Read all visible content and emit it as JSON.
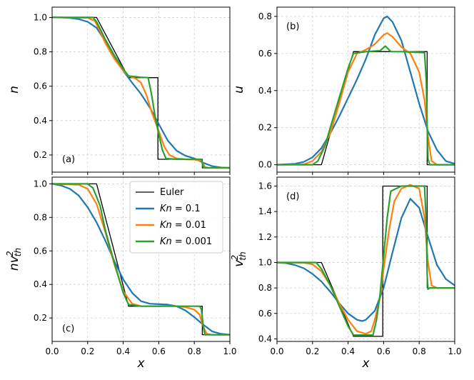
{
  "chart_data": {
    "type": "line",
    "legend": {
      "placement": "upper-right of panel (c)",
      "entries": [
        {
          "label": "Euler",
          "color": "#000000"
        },
        {
          "label": "Kn = 0.1",
          "color": "#1f77b4"
        },
        {
          "label": "Kn = 0.01",
          "color": "#ff7f0e"
        },
        {
          "label": "Kn = 0.001",
          "color": "#2ca02c"
        }
      ]
    },
    "panels": [
      {
        "id": "a",
        "label": "(a)",
        "ylabel": "n",
        "xlabel": "",
        "xlim": [
          0,
          1
        ],
        "ylim": [
          0.1,
          1.06
        ],
        "xticks": [],
        "yticks": [
          "1.0",
          "0.8",
          "0.6",
          "0.4",
          "0.2"
        ],
        "ytick_values": [
          1.0,
          0.8,
          0.6,
          0.4,
          0.2
        ],
        "series": [
          {
            "name": "Euler",
            "color": "#000000",
            "width": 1.3,
            "x": [
              0,
              0.25,
              0.43,
              0.595,
              0.595,
              0.845,
              0.845,
              1.0
            ],
            "y": [
              1.0,
              1.0,
              0.65,
              0.65,
              0.175,
              0.175,
              0.125,
              0.125
            ]
          },
          {
            "name": "Kn = 0.1",
            "color": "#1f77b4",
            "width": 2.2,
            "x": [
              0,
              0.05,
              0.1,
              0.15,
              0.2,
              0.25,
              0.3,
              0.35,
              0.4,
              0.45,
              0.5,
              0.55,
              0.6,
              0.65,
              0.7,
              0.75,
              0.8,
              0.85,
              0.9,
              0.95,
              1.0
            ],
            "y": [
              1.0,
              1.0,
              0.997,
              0.99,
              0.975,
              0.94,
              0.86,
              0.77,
              0.69,
              0.62,
              0.555,
              0.475,
              0.38,
              0.285,
              0.225,
              0.195,
              0.18,
              0.155,
              0.135,
              0.127,
              0.125
            ]
          },
          {
            "name": "Kn = 0.01",
            "color": "#ff7f0e",
            "width": 2.2,
            "x": [
              0,
              0.2,
              0.24,
              0.27,
              0.3,
              0.35,
              0.4,
              0.43,
              0.47,
              0.5,
              0.53,
              0.56,
              0.6,
              0.63,
              0.66,
              0.7,
              0.75,
              0.8,
              0.84,
              0.86,
              0.88,
              0.92,
              1.0
            ],
            "y": [
              1.0,
              0.998,
              0.98,
              0.92,
              0.85,
              0.76,
              0.69,
              0.66,
              0.645,
              0.62,
              0.55,
              0.45,
              0.34,
              0.25,
              0.2,
              0.18,
              0.175,
              0.173,
              0.165,
              0.13,
              0.125,
              0.125,
              0.125
            ]
          },
          {
            "name": "Kn = 0.001",
            "color": "#2ca02c",
            "width": 2.2,
            "x": [
              0,
              0.23,
              0.25,
              0.27,
              0.3,
              0.35,
              0.4,
              0.43,
              0.5,
              0.54,
              0.56,
              0.58,
              0.6,
              0.62,
              0.64,
              0.7,
              0.84,
              0.85,
              0.86,
              1.0
            ],
            "y": [
              1.0,
              1.0,
              0.975,
              0.935,
              0.87,
              0.78,
              0.7,
              0.66,
              0.652,
              0.65,
              0.55,
              0.42,
              0.32,
              0.23,
              0.18,
              0.175,
              0.175,
              0.13,
              0.125,
              0.125
            ]
          }
        ]
      },
      {
        "id": "b",
        "label": "(b)",
        "ylabel": "u",
        "xlabel": "",
        "xlim": [
          0,
          1
        ],
        "ylim": [
          -0.04,
          0.85
        ],
        "xticks": [],
        "yticks": [
          "0.8",
          "0.6",
          "0.4",
          "0.2",
          "0.0"
        ],
        "ytick_values": [
          0.8,
          0.6,
          0.4,
          0.2,
          0.0
        ],
        "series": [
          {
            "name": "Euler",
            "color": "#000000",
            "width": 1.3,
            "x": [
              0,
              0.25,
              0.43,
              0.845,
              0.845,
              1.0
            ],
            "y": [
              0.0,
              0.0,
              0.61,
              0.61,
              0.0,
              0.0
            ]
          },
          {
            "name": "Kn = 0.1",
            "color": "#1f77b4",
            "width": 2.2,
            "x": [
              0,
              0.1,
              0.15,
              0.2,
              0.25,
              0.3,
              0.35,
              0.4,
              0.45,
              0.5,
              0.55,
              0.6,
              0.62,
              0.65,
              0.7,
              0.75,
              0.8,
              0.85,
              0.9,
              0.95,
              1.0
            ],
            "y": [
              0.0,
              0.005,
              0.015,
              0.04,
              0.09,
              0.17,
              0.26,
              0.36,
              0.46,
              0.57,
              0.7,
              0.79,
              0.8,
              0.77,
              0.67,
              0.5,
              0.33,
              0.18,
              0.08,
              0.02,
              0.005
            ]
          },
          {
            "name": "Kn = 0.01",
            "color": "#ff7f0e",
            "width": 2.2,
            "x": [
              0,
              0.15,
              0.2,
              0.25,
              0.3,
              0.35,
              0.4,
              0.45,
              0.5,
              0.55,
              0.6,
              0.62,
              0.65,
              0.7,
              0.75,
              0.8,
              0.83,
              0.85,
              0.87,
              0.9,
              1.0
            ],
            "y": [
              0.0,
              0.002,
              0.02,
              0.07,
              0.17,
              0.33,
              0.5,
              0.6,
              0.62,
              0.65,
              0.7,
              0.71,
              0.69,
              0.635,
              0.6,
              0.5,
              0.35,
              0.15,
              0.02,
              0.0,
              0.0
            ]
          },
          {
            "name": "Kn = 0.001",
            "color": "#2ca02c",
            "width": 2.2,
            "x": [
              0,
              0.2,
              0.23,
              0.27,
              0.3,
              0.35,
              0.4,
              0.43,
              0.5,
              0.58,
              0.61,
              0.64,
              0.7,
              0.83,
              0.84,
              0.845,
              0.85,
              0.86,
              1.0
            ],
            "y": [
              0.0,
              0.0,
              0.02,
              0.1,
              0.2,
              0.36,
              0.52,
              0.6,
              0.61,
              0.615,
              0.64,
              0.61,
              0.61,
              0.605,
              0.45,
              0.2,
              0.03,
              0.0,
              0.0
            ]
          }
        ]
      },
      {
        "id": "c",
        "label": "(c)",
        "ylabel": "nv_th^2",
        "xlabel": "x",
        "xlim": [
          0,
          1
        ],
        "ylim": [
          0.06,
          1.04
        ],
        "xticks": [
          "0.0",
          "0.2",
          "0.4",
          "0.6",
          "0.8",
          "1.0"
        ],
        "xtick_values": [
          0,
          0.2,
          0.4,
          0.6,
          0.8,
          1.0
        ],
        "yticks": [
          "1.0",
          "0.8",
          "0.6",
          "0.4",
          "0.2"
        ],
        "ytick_values": [
          1.0,
          0.8,
          0.6,
          0.4,
          0.2
        ],
        "series": [
          {
            "name": "Euler",
            "color": "#000000",
            "width": 1.3,
            "x": [
              0,
              0.25,
              0.43,
              0.845,
              0.845,
              1.0
            ],
            "y": [
              1.0,
              1.0,
              0.27,
              0.27,
              0.1,
              0.1
            ]
          },
          {
            "name": "Kn = 0.1",
            "color": "#1f77b4",
            "width": 2.2,
            "x": [
              0,
              0.05,
              0.1,
              0.15,
              0.2,
              0.25,
              0.3,
              0.35,
              0.4,
              0.45,
              0.5,
              0.55,
              0.6,
              0.65,
              0.7,
              0.75,
              0.8,
              0.85,
              0.9,
              0.95,
              1.0
            ],
            "y": [
              1.0,
              0.99,
              0.97,
              0.93,
              0.86,
              0.77,
              0.66,
              0.54,
              0.43,
              0.35,
              0.3,
              0.285,
              0.282,
              0.28,
              0.27,
              0.245,
              0.205,
              0.16,
              0.12,
              0.105,
              0.1
            ]
          },
          {
            "name": "Kn = 0.01",
            "color": "#ff7f0e",
            "width": 2.2,
            "x": [
              0,
              0.15,
              0.2,
              0.25,
              0.3,
              0.35,
              0.4,
              0.45,
              0.5,
              0.6,
              0.65,
              0.7,
              0.75,
              0.8,
              0.83,
              0.85,
              0.87,
              0.9,
              1.0
            ],
            "y": [
              1.0,
              0.995,
              0.97,
              0.88,
              0.71,
              0.52,
              0.36,
              0.285,
              0.27,
              0.27,
              0.272,
              0.27,
              0.265,
              0.25,
              0.22,
              0.15,
              0.105,
              0.1,
              0.1
            ]
          },
          {
            "name": "Kn = 0.001",
            "color": "#2ca02c",
            "width": 2.2,
            "x": [
              0,
              0.2,
              0.23,
              0.27,
              0.3,
              0.35,
              0.4,
              0.43,
              0.5,
              0.83,
              0.84,
              0.85,
              0.86,
              1.0
            ],
            "y": [
              1.0,
              1.0,
              0.975,
              0.87,
              0.72,
              0.53,
              0.35,
              0.28,
              0.27,
              0.27,
              0.25,
              0.15,
              0.1,
              0.1
            ]
          }
        ]
      },
      {
        "id": "d",
        "label": "(d)",
        "ylabel": "v_th^2",
        "xlabel": "x",
        "xlim": [
          0,
          1
        ],
        "ylim": [
          0.38,
          1.67
        ],
        "xticks": [
          "0.0",
          "0.2",
          "0.4",
          "0.6",
          "0.8",
          "1.0"
        ],
        "xtick_values": [
          0,
          0.2,
          0.4,
          0.6,
          0.8,
          1.0
        ],
        "yticks": [
          "1.6",
          "1.4",
          "1.2",
          "1.0",
          "0.8",
          "0.6",
          "0.4"
        ],
        "ytick_values": [
          1.6,
          1.4,
          1.2,
          1.0,
          0.8,
          0.6,
          0.4
        ],
        "series": [
          {
            "name": "Euler",
            "color": "#000000",
            "width": 1.3,
            "x": [
              0,
              0.25,
              0.43,
              0.595,
              0.595,
              0.845,
              0.845,
              1.0
            ],
            "y": [
              1.0,
              1.0,
              0.42,
              0.42,
              1.6,
              1.6,
              0.8,
              0.8
            ]
          },
          {
            "name": "Kn = 0.1",
            "color": "#1f77b4",
            "width": 2.2,
            "x": [
              0,
              0.05,
              0.1,
              0.15,
              0.2,
              0.25,
              0.3,
              0.35,
              0.4,
              0.45,
              0.48,
              0.5,
              0.55,
              0.6,
              0.65,
              0.7,
              0.75,
              0.8,
              0.85,
              0.9,
              0.95,
              1.0
            ],
            "y": [
              1.0,
              0.995,
              0.98,
              0.955,
              0.91,
              0.85,
              0.77,
              0.68,
              0.6,
              0.55,
              0.54,
              0.55,
              0.62,
              0.8,
              1.08,
              1.35,
              1.5,
              1.43,
              1.2,
              0.98,
              0.87,
              0.82
            ]
          },
          {
            "name": "Kn = 0.01",
            "color": "#ff7f0e",
            "width": 2.2,
            "x": [
              0,
              0.15,
              0.2,
              0.25,
              0.3,
              0.35,
              0.4,
              0.45,
              0.5,
              0.53,
              0.55,
              0.58,
              0.6,
              0.63,
              0.66,
              0.7,
              0.75,
              0.8,
              0.83,
              0.85,
              0.87,
              0.9,
              1.0
            ],
            "y": [
              1.0,
              0.998,
              0.985,
              0.93,
              0.82,
              0.68,
              0.55,
              0.46,
              0.44,
              0.46,
              0.55,
              0.72,
              0.95,
              1.25,
              1.48,
              1.58,
              1.61,
              1.58,
              1.35,
              1.0,
              0.82,
              0.8,
              0.8
            ]
          },
          {
            "name": "Kn = 0.001",
            "color": "#2ca02c",
            "width": 2.2,
            "x": [
              0,
              0.22,
              0.25,
              0.3,
              0.35,
              0.4,
              0.43,
              0.54,
              0.56,
              0.58,
              0.6,
              0.62,
              0.64,
              0.7,
              0.83,
              0.84,
              0.845,
              0.85,
              0.86,
              1.0
            ],
            "y": [
              1.0,
              1.0,
              0.95,
              0.82,
              0.66,
              0.5,
              0.43,
              0.43,
              0.55,
              0.75,
              1.05,
              1.35,
              1.56,
              1.6,
              1.6,
              1.3,
              0.9,
              0.79,
              0.8,
              0.8
            ]
          }
        ]
      }
    ]
  }
}
